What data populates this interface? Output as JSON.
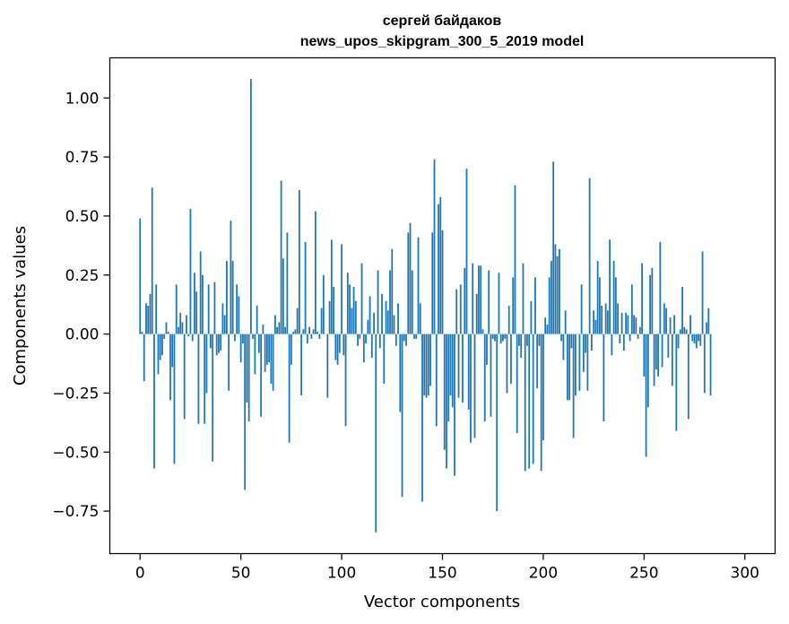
{
  "chart_data": {
    "type": "bar",
    "title_line1": "сергей байдаков",
    "title_line2": "news_upos_skipgram_300_5_2019 model",
    "xlabel": "Vector components",
    "ylabel": "Components values",
    "xlim": [
      -15,
      315
    ],
    "ylim": [
      -0.93,
      1.17
    ],
    "xticks": [
      0,
      50,
      100,
      150,
      200,
      250,
      300
    ],
    "yticks": [
      -0.75,
      -0.5,
      -0.25,
      0.0,
      0.25,
      0.5,
      0.75,
      1.0
    ],
    "ytick_labels": [
      "−0.75",
      "−0.50",
      "−0.25",
      "0.00",
      "0.25",
      "0.50",
      "0.75",
      "1.00"
    ],
    "bar_color": "#1f77b4",
    "values": [
      0.49,
      0.01,
      -0.2,
      0.13,
      0.12,
      0.17,
      0.62,
      -0.57,
      0.21,
      -0.17,
      -0.11,
      -0.09,
      -0.02,
      0.05,
      0.01,
      -0.28,
      -0.14,
      -0.55,
      0.21,
      0.03,
      0.09,
      0.05,
      -0.36,
      0.08,
      -0.01,
      0.53,
      -0.03,
      0.26,
      0.18,
      -0.38,
      0.35,
      0.25,
      -0.38,
      -0.25,
      0.21,
      -0.06,
      -0.54,
      0.22,
      -0.09,
      -0.08,
      -0.07,
      0.13,
      0.08,
      0.31,
      -0.24,
      0.48,
      0.31,
      -0.03,
      0.21,
      0.16,
      -0.12,
      -0.04,
      -0.66,
      -0.29,
      -0.37,
      1.08,
      -0.02,
      -0.17,
      0.12,
      -0.08,
      -0.35,
      0.04,
      -0.16,
      -0.13,
      -0.12,
      -0.21,
      -0.24,
      0.08,
      0.03,
      0.05,
      0.65,
      0.32,
      0.03,
      0.43,
      -0.46,
      -0.13,
      0.01,
      0.02,
      0.11,
      0.61,
      -0.26,
      0.02,
      0.39,
      -0.04,
      0.03,
      -0.02,
      0.02,
      0.52,
      0.01,
      -0.02,
      0.11,
      0.25,
      0.0,
      -0.27,
      0.14,
      0.4,
      0.2,
      -0.11,
      -0.13,
      -0.08,
      0.38,
      -0.09,
      -0.39,
      0.26,
      0.21,
      0.11,
      0.2,
      0.14,
      -0.05,
      -0.02,
      0.3,
      -0.12,
      -0.04,
      0.06,
      0.16,
      -0.1,
      0.09,
      -0.84,
      0.27,
      -0.06,
      0.17,
      -0.21,
      0.14,
      0.1,
      0.27,
      0.36,
      0.08,
      -0.05,
      0.13,
      -0.33,
      -0.69,
      -0.03,
      -0.05,
      0.43,
      0.47,
      0.27,
      -0.02,
      -0.02,
      0.41,
      0.13,
      -0.71,
      -0.26,
      -0.27,
      -0.26,
      -0.22,
      0.43,
      0.74,
      -0.39,
      0.55,
      0.58,
      0.44,
      -0.49,
      -0.57,
      -0.37,
      -0.26,
      -0.31,
      -0.6,
      0.19,
      -0.27,
      0.21,
      -0.29,
      0.28,
      0.7,
      -0.32,
      -0.46,
      0.3,
      -0.44,
      0.17,
      0.29,
      0.29,
      0.02,
      -0.37,
      -0.13,
      0.27,
      -0.35,
      -0.02,
      -0.03,
      -0.75,
      0.26,
      -0.04,
      -0.03,
      -0.02,
      -0.25,
      0.12,
      -0.21,
      0.24,
      0.63,
      -0.42,
      -0.05,
      -0.1,
      0.3,
      -0.58,
      -0.05,
      -0.57,
      0.14,
      -0.55,
      0.24,
      -0.23,
      -0.05,
      -0.58,
      -0.45,
      0.07,
      0.04,
      0.24,
      0.31,
      0.73,
      0.38,
      0.33,
      0.36,
      -0.03,
      -0.11,
      0.1,
      -0.28,
      -0.28,
      -0.06,
      -0.44,
      -0.26,
      0.0,
      -0.24,
      0.21,
      -0.16,
      -0.08,
      -0.24,
      0.66,
      -0.07,
      0.1,
      0.06,
      0.31,
      0.24,
      0.12,
      -0.37,
      0.13,
      0.1,
      0.4,
      -0.09,
      0.31,
      0.24,
      0.13,
      -0.04,
      0.09,
      -0.07,
      0.09,
      0.08,
      -0.03,
      0.21,
      0.08,
      0.07,
      -0.02,
      0.03,
      0.3,
      -0.18,
      -0.52,
      -0.31,
      0.25,
      0.28,
      -0.22,
      -0.15,
      -0.18,
      0.39,
      -0.14,
      0.13,
      0.11,
      -0.1,
      0.07,
      -0.22,
      0.08,
      -0.41,
      -0.06,
      0.02,
      0.2,
      0.03,
      0.02,
      -0.36,
      0.08,
      -0.03,
      -0.04,
      -0.06,
      -0.03,
      -0.05,
      0.35,
      -0.25,
      0.05,
      0.11,
      -0.26
    ]
  }
}
